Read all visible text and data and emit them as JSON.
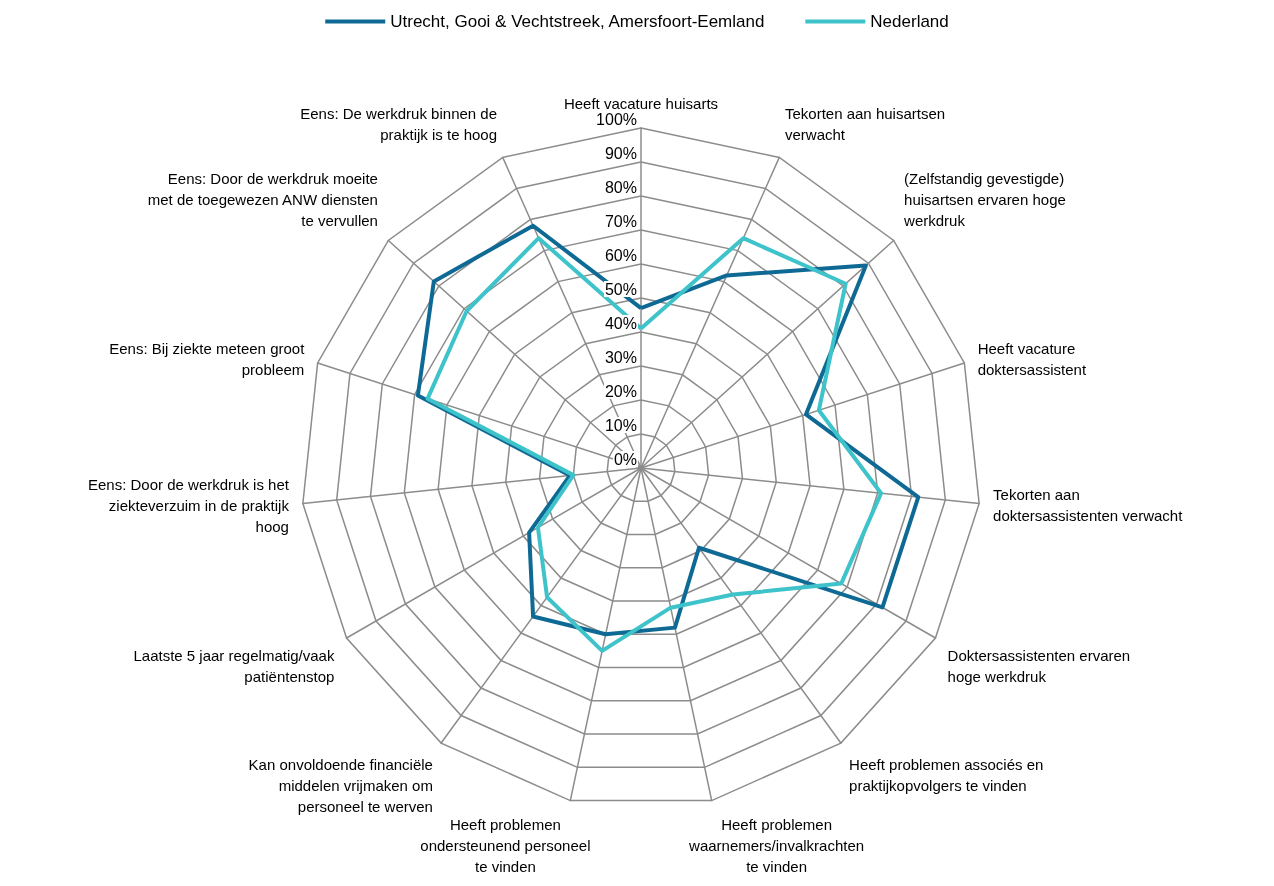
{
  "chart_data": {
    "type": "radar",
    "categories": [
      "Heeft vacature huisarts",
      "Tekorten aan huisartsen verwacht",
      "(Zelfstandig gevestigde) huisartsen ervaren hoge werkdruk",
      "Heeft vacature doktersassistent",
      "Tekorten aan doktersassistenten verwacht",
      "Doktersassistenten ervaren hoge werkdruk",
      "Heeft problemen associés en praktijkopvolgers te vinden",
      "Heeft problemen waarnemers/invalkrachten te vinden",
      "Heeft problemen ondersteunend personeel te vinden",
      "Kan onvoldoende financiële middelen vrijmaken om personeel te werven",
      "Laatste 5 jaar regelmatig/vaak patiëntenstop",
      "Eens: Door de werkdruk is het ziekteverzuim in de praktijk hoog",
      "Eens: Bij ziekte meteen groot probleem",
      "Eens: Door de werkdruk moeite met de toegewezen ANW diensten te vervullen",
      "Eens: De werkdruk binnen de praktijk is te hoog"
    ],
    "series": [
      {
        "name": "Utrecht, Gooi & Vechtstreek, Amersfoort-Eemland",
        "color": "#0e6a94",
        "values": [
          47,
          62,
          89,
          51,
          82,
          82,
          29,
          48,
          50,
          54,
          38,
          21,
          69,
          82,
          78
        ]
      },
      {
        "name": "Nederland",
        "color": "#3ec3ca",
        "values": [
          41,
          74,
          81,
          55,
          71,
          68,
          46,
          42,
          55,
          47,
          35,
          20,
          66,
          69,
          74
        ]
      }
    ],
    "ylim": [
      0,
      100
    ],
    "yticks": [
      {
        "value": 0,
        "label": "0%"
      },
      {
        "value": 10,
        "label": "10%"
      },
      {
        "value": 20,
        "label": "20%"
      },
      {
        "value": 30,
        "label": "30%"
      },
      {
        "value": 40,
        "label": "40%"
      },
      {
        "value": 50,
        "label": "50%"
      },
      {
        "value": 60,
        "label": "60%"
      },
      {
        "value": 70,
        "label": "70%"
      },
      {
        "value": 80,
        "label": "80%"
      },
      {
        "value": 90,
        "label": "90%"
      },
      {
        "value": 100,
        "label": "100%"
      }
    ],
    "grid": true,
    "legend": "top",
    "marker": "none",
    "line_style": "solid"
  }
}
